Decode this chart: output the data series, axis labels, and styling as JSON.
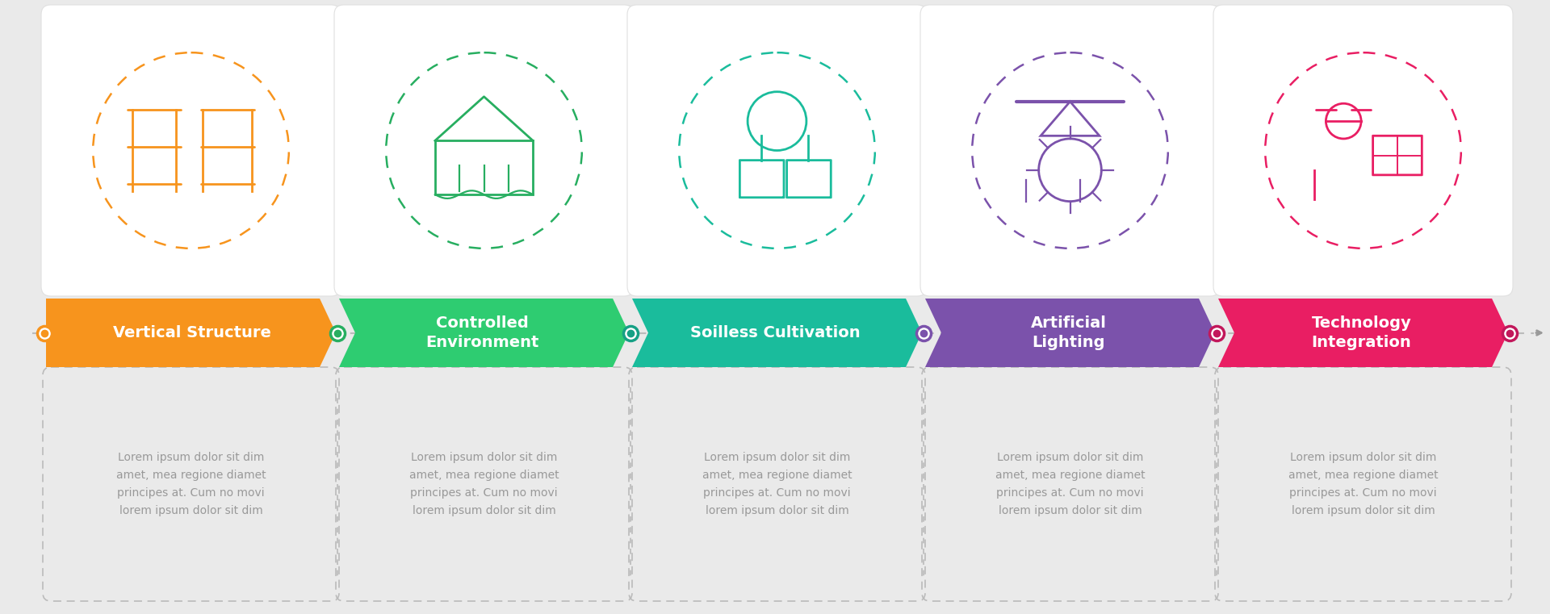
{
  "bg_color": "#EAEAEA",
  "steps": [
    {
      "label": "Vertical Structure",
      "label_lines": 1,
      "color": "#F7941D",
      "dot_color": "#F7941D",
      "icon_color": "#F7941D"
    },
    {
      "label": "Controlled\nEnvironment",
      "label_lines": 2,
      "color": "#2ECC71",
      "dot_color": "#27AE60",
      "icon_color": "#27AE60"
    },
    {
      "label": "Soilless Cultivation",
      "label_lines": 1,
      "color": "#1ABC9C",
      "dot_color": "#16A085",
      "icon_color": "#1ABC9C"
    },
    {
      "label": "Artificial\nLighting",
      "label_lines": 2,
      "color": "#7B52AB",
      "dot_color": "#7B52AB",
      "icon_color": "#7B52AB"
    },
    {
      "label": "Technology\nIntegration",
      "label_lines": 2,
      "color": "#E91E63",
      "dot_color": "#C2185B",
      "icon_color": "#E91E63"
    }
  ],
  "description_text": "Lorem ipsum dolor sit dim\namet, mea regione diamet\nprincipes at. Cum no movi\nlorem ipsum dolor sit dim",
  "n_steps": 5,
  "fig_w": 19.2,
  "fig_h": 7.61
}
